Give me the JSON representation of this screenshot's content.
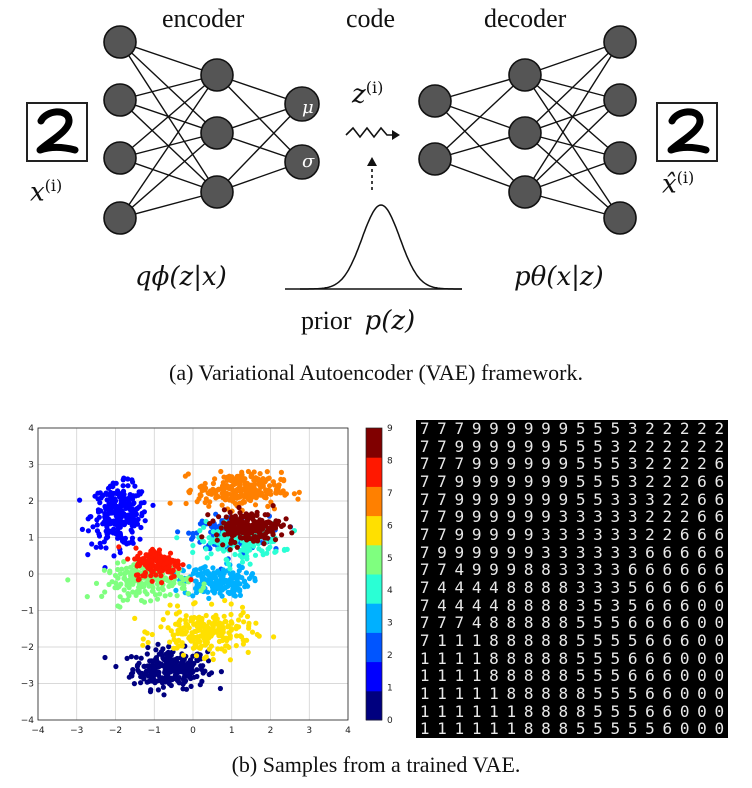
{
  "diagram": {
    "encoder_label": "encoder",
    "code_label": "code",
    "decoder_label": "decoder",
    "input_label": "x",
    "input_superscript": "(i)",
    "output_label": "x̂",
    "output_superscript": "(i)",
    "latent_label": "z",
    "latent_superscript": "(i)",
    "mu_label": "μ",
    "sigma_label": "σ",
    "encoder_dist": "qϕ(z|x)",
    "decoder_dist": "pθ(x|z)",
    "prior_text": "prior",
    "prior_expr": "p(z)",
    "digit_shown": "2",
    "node_color": "#555555"
  },
  "caption_a": "(a) Variational Autoencoder (VAE) framework.",
  "caption_b": "(b) Samples from a trained VAE.",
  "chart_data": {
    "type": "scatter",
    "xlim": [
      -4,
      4
    ],
    "ylim": [
      -4,
      4
    ],
    "x_ticks": [
      "−4",
      "−3",
      "−2",
      "−1",
      "0",
      "1",
      "2",
      "3",
      "4"
    ],
    "y_ticks": [
      "−4",
      "−3",
      "−2",
      "−1",
      "0",
      "1",
      "2",
      "3",
      "4"
    ],
    "grid": true,
    "colorbar_ticks": [
      "0",
      "1",
      "2",
      "3",
      "4",
      "5",
      "6",
      "7",
      "8",
      "9"
    ],
    "colormap": [
      "#00007f",
      "#0000ff",
      "#0055ff",
      "#00b0ff",
      "#2affd5",
      "#7fff7f",
      "#ffe000",
      "#ff8000",
      "#ff1800",
      "#800000"
    ],
    "clusters": [
      {
        "digit": 0,
        "cx": -0.6,
        "cy": -2.6,
        "sx": 0.8,
        "sy": 0.45,
        "n": 260
      },
      {
        "digit": 1,
        "cx": -1.9,
        "cy": 1.6,
        "sx": 0.6,
        "sy": 0.7,
        "n": 260
      },
      {
        "digit": 2,
        "cx": 1.0,
        "cy": 1.1,
        "sx": 0.8,
        "sy": 0.4,
        "n": 180
      },
      {
        "digit": 3,
        "cx": 0.6,
        "cy": -0.2,
        "sx": 0.7,
        "sy": 0.35,
        "n": 180
      },
      {
        "digit": 4,
        "cx": 1.2,
        "cy": 0.9,
        "sx": 0.9,
        "sy": 0.4,
        "n": 160
      },
      {
        "digit": 5,
        "cx": -1.2,
        "cy": -0.2,
        "sx": 0.9,
        "sy": 0.4,
        "n": 180
      },
      {
        "digit": 6,
        "cx": 0.3,
        "cy": -1.6,
        "sx": 1.0,
        "sy": 0.5,
        "n": 220
      },
      {
        "digit": 7,
        "cx": 1.2,
        "cy": 2.3,
        "sx": 0.9,
        "sy": 0.4,
        "n": 240
      },
      {
        "digit": 8,
        "cx": -0.9,
        "cy": 0.3,
        "sx": 0.5,
        "sy": 0.35,
        "n": 160
      },
      {
        "digit": 9,
        "cx": 1.4,
        "cy": 1.3,
        "sx": 0.7,
        "sy": 0.35,
        "n": 200
      }
    ]
  },
  "samples_grid": [
    "777999999555322222",
    "779999995553222222",
    "777999999555322226",
    "779999999555322266",
    "779999999553332266",
    "779999993333322266",
    "779999933333322666",
    "799999933333366666",
    "774999883333666666",
    "744448888333566666",
    "744448888353566600",
    "777488888555666600",
    "711188888555566600",
    "111188888555666000",
    "111188888555666000",
    "111118888855566000",
    "111111888855566000",
    "111111888555556000"
  ]
}
